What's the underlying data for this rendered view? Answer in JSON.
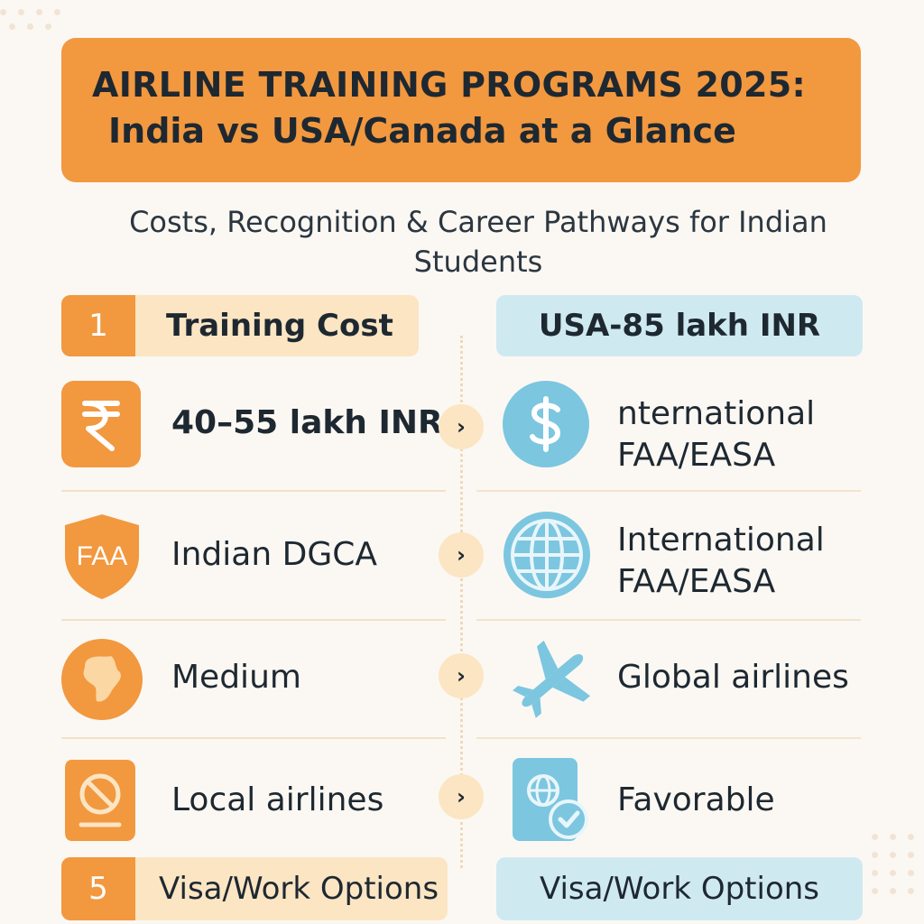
{
  "header": {
    "title_line1": "AIRLINE TRAINING PROGRAMS 2025:",
    "title_line2": "India vs USA/Canada at a Glance",
    "subtitle": "Costs, Recognition & Career Pathways for Indian Students"
  },
  "left": {
    "head_number": "1",
    "head_label": "Training Cost",
    "rows": [
      {
        "icon": "rupee-icon",
        "text": "40–55 lakh INR"
      },
      {
        "icon": "faa-shield-icon",
        "icon_text": "FAA",
        "text": "Indian DGCA"
      },
      {
        "icon": "globe-map-icon",
        "text": "Medium"
      },
      {
        "icon": "no-entry-document-icon",
        "text": "Local airlines"
      }
    ],
    "foot_number": "5",
    "foot_label": "Visa/Work Options"
  },
  "right": {
    "head_label": "USA-85  lakh INR",
    "rows": [
      {
        "icon": "dollar-icon",
        "text_line1": "nternational",
        "text_line2": "FAA/EASA"
      },
      {
        "icon": "globe-icon",
        "text_line1": "International",
        "text_line2": "FAA/EASA"
      },
      {
        "icon": "airplane-icon",
        "text": "Global airlines"
      },
      {
        "icon": "passport-check-icon",
        "text": "Favorable"
      }
    ],
    "foot_label": "Visa/Work Options"
  },
  "chevron": "›",
  "colors": {
    "orange": "#f2983f",
    "peach": "#fbe5c3",
    "light_blue": "#cfe9f1",
    "sky_blue": "#7cc6e0",
    "background": "#fbf8f3",
    "text": "#1e2831"
  }
}
